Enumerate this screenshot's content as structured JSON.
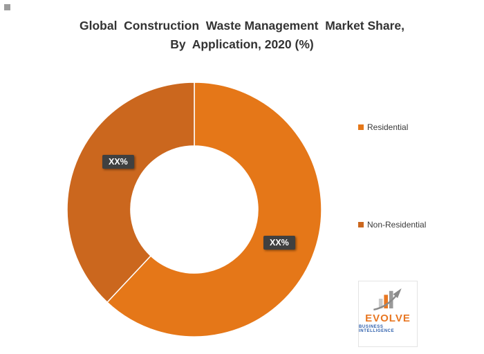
{
  "title": {
    "line1": "Global  Construction  Waste Management  Market Share,",
    "line2": "By  Application, 2020 (%)"
  },
  "chart_data": {
    "type": "pie",
    "donut": true,
    "title": "Global Construction Waste Management Market Share, By Application, 2020 (%)",
    "categories": [
      "Residential",
      "Non-Residential"
    ],
    "values": [
      62,
      38
    ],
    "data_labels": [
      "XX%",
      "XX%"
    ],
    "colors": [
      "#E57718",
      "#CB671E"
    ],
    "start_angle_deg": 0,
    "direction": "clockwise",
    "hole_ratio": 0.5,
    "legend_position": "right",
    "label_box_bg": "#404040",
    "label_text_color": "#FFFFFF"
  },
  "legend": {
    "items": [
      {
        "label": "Residential",
        "color": "#E57718"
      },
      {
        "label": "Non-Residential",
        "color": "#CB671E"
      }
    ]
  },
  "logo": {
    "brand": "EVOLVE",
    "tagline": "BUSINESS INTELLIGENCE",
    "brand_color": "#E87722",
    "tagline_color": "#2a5caa"
  }
}
